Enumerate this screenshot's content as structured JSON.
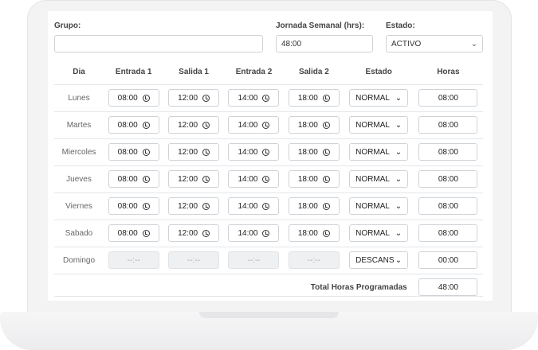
{
  "form": {
    "grupo_label": "Grupo:",
    "grupo_value": "",
    "jornada_label": "Jornada Semanal (hrs):",
    "jornada_value": "48:00",
    "estado_label": "Estado:",
    "estado_value": "ACTIVO"
  },
  "table": {
    "headers": [
      "Dia",
      "Entrada 1",
      "Salida 1",
      "Entrada 2",
      "Salida 2",
      "Estado",
      "Horas"
    ],
    "rows": [
      {
        "day": "Lunes",
        "e1": "08:00",
        "s1": "12:00",
        "e2": "14:00",
        "s2": "18:00",
        "estado": "NORMAL",
        "horas": "08:00"
      },
      {
        "day": "Martes",
        "e1": "08:00",
        "s1": "12:00",
        "e2": "14:00",
        "s2": "18:00",
        "estado": "NORMAL",
        "horas": "08:00"
      },
      {
        "day": "Miercoles",
        "e1": "08:00",
        "s1": "12:00",
        "e2": "14:00",
        "s2": "18:00",
        "estado": "NORMAL",
        "horas": "08:00"
      },
      {
        "day": "Jueves",
        "e1": "08:00",
        "s1": "12:00",
        "e2": "14:00",
        "s2": "18:00",
        "estado": "NORMAL",
        "horas": "08:00"
      },
      {
        "day": "Viernes",
        "e1": "08:00",
        "s1": "12:00",
        "e2": "14:00",
        "s2": "18:00",
        "estado": "NORMAL",
        "horas": "08:00"
      },
      {
        "day": "Sabado",
        "e1": "08:00",
        "s1": "12:00",
        "e2": "14:00",
        "s2": "18:00",
        "estado": "NORMAL",
        "horas": "08:00"
      },
      {
        "day": "Domingo",
        "e1": "--:--",
        "s1": "--:--",
        "e2": "--:--",
        "s2": "--:--",
        "estado": "DESCANS",
        "horas": "00:00",
        "disabled": true
      }
    ],
    "total_label": "Total Horas Programadas",
    "total_value": "48:00"
  },
  "icons": {
    "time": "clock-icon",
    "select": "chevron-down-icon"
  }
}
